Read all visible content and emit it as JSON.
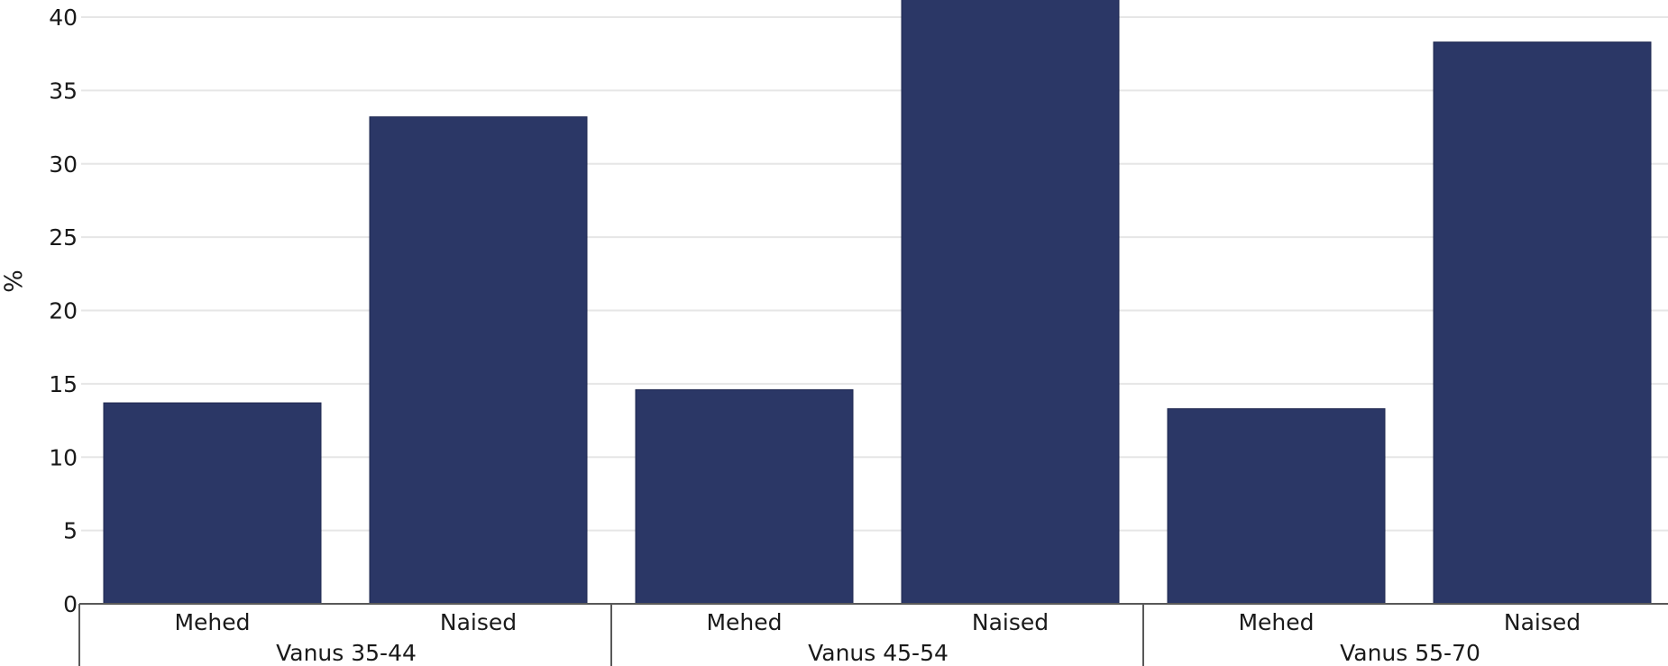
{
  "chart_data": {
    "type": "bar",
    "title": "",
    "ylabel": "%",
    "xlabel": "",
    "ylim": [
      0,
      40
    ],
    "yticks": [
      0,
      5,
      10,
      15,
      20,
      25,
      30,
      35,
      40
    ],
    "grid": true,
    "bar_color": "#2b3766",
    "groups": [
      {
        "label": "Vanus 35-44",
        "categories": [
          "Mehed",
          "Naised"
        ],
        "values": [
          13.7,
          33.2
        ]
      },
      {
        "label": "Vanus 45-54",
        "categories": [
          "Mehed",
          "Naised"
        ],
        "values": [
          14.6,
          41.5
        ]
      },
      {
        "label": "Vanus 55-70",
        "categories": [
          "Mehed",
          "Naised"
        ],
        "values": [
          13.3,
          38.3
        ]
      }
    ]
  }
}
